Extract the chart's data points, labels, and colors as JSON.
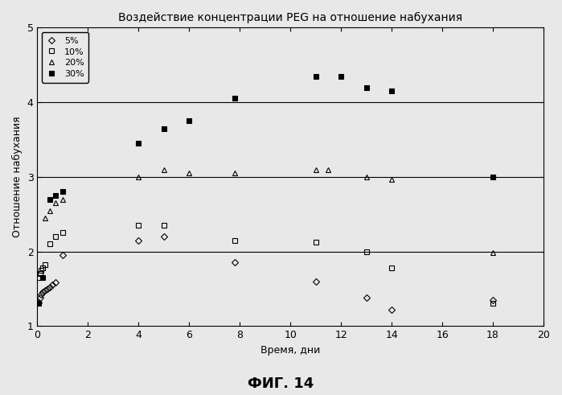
{
  "title": "Воздействие концентрации PEG на отношение набухания",
  "xlabel": "Время, дни",
  "ylabel": "Отношение набухания",
  "fig_label": "ФИГ. 14",
  "xlim": [
    0,
    20
  ],
  "ylim": [
    1,
    5
  ],
  "yticks": [
    1,
    2,
    3,
    4,
    5
  ],
  "xticks": [
    0,
    2,
    4,
    6,
    8,
    10,
    12,
    14,
    16,
    18,
    20
  ],
  "series": {
    "5%": {
      "marker": "D",
      "fillstyle": "none",
      "markersize": 4,
      "x": [
        0.05,
        0.1,
        0.15,
        0.2,
        0.3,
        0.4,
        0.5,
        0.6,
        0.7,
        1.0,
        4.0,
        5.0,
        7.8,
        11.0,
        13.0,
        14.0,
        18.0
      ],
      "y": [
        1.32,
        1.38,
        1.42,
        1.45,
        1.48,
        1.5,
        1.52,
        1.55,
        1.58,
        1.95,
        2.15,
        2.2,
        1.85,
        1.6,
        1.38,
        1.22,
        1.35
      ]
    },
    "10%": {
      "marker": "s",
      "fillstyle": "none",
      "markersize": 4,
      "x": [
        0.05,
        0.1,
        0.15,
        0.2,
        0.3,
        0.5,
        0.7,
        1.0,
        4.0,
        5.0,
        7.8,
        11.0,
        13.0,
        14.0,
        18.0
      ],
      "y": [
        1.65,
        1.7,
        1.75,
        1.78,
        1.82,
        2.1,
        2.2,
        2.25,
        2.35,
        2.35,
        2.15,
        2.12,
        2.0,
        1.78,
        1.3
      ]
    },
    "20%": {
      "marker": "^",
      "fillstyle": "none",
      "markersize": 4,
      "x": [
        0.3,
        0.5,
        0.7,
        1.0,
        4.0,
        5.0,
        6.0,
        7.8,
        11.0,
        11.5,
        13.0,
        14.0,
        18.0
      ],
      "y": [
        2.45,
        2.55,
        2.65,
        2.7,
        3.0,
        3.1,
        3.05,
        3.05,
        3.1,
        3.1,
        3.0,
        2.97,
        1.98
      ]
    },
    "30%": {
      "marker": "s",
      "fillstyle": "full",
      "markersize": 5,
      "x": [
        0.05,
        0.2,
        0.5,
        0.7,
        1.0,
        4.0,
        5.0,
        6.0,
        7.8,
        11.0,
        12.0,
        13.0,
        14.0,
        18.0
      ],
      "y": [
        1.3,
        1.65,
        2.7,
        2.75,
        2.8,
        3.45,
        3.65,
        3.75,
        4.05,
        4.35,
        4.35,
        4.2,
        4.15,
        3.0
      ]
    }
  },
  "hlines": [
    2,
    3,
    4
  ],
  "bg_color": "#e8e8e8"
}
